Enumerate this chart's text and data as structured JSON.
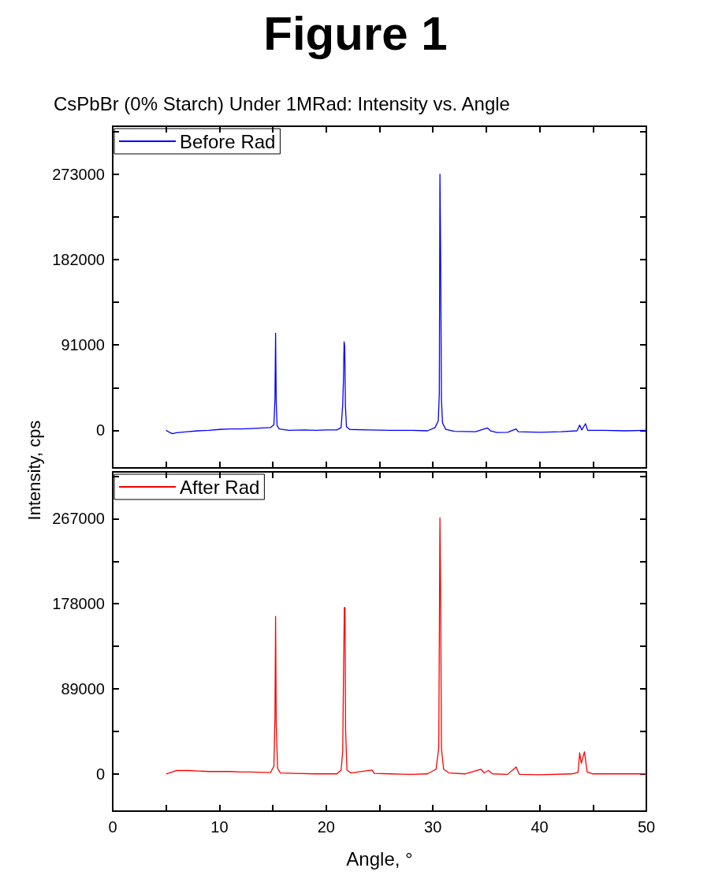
{
  "chart_data": [
    {
      "type": "line",
      "title": "CsPbBr (0% Starch) Under 1MRad: Intensity vs. Angle",
      "annotations": [
        "Figure 1"
      ],
      "ylabel": "Intensity, cps",
      "series": [
        {
          "name": "Before Rad",
          "color": "#0000ff",
          "x": [
            5.0,
            5.3,
            5.6,
            6,
            7,
            8,
            9,
            10,
            11,
            12,
            13,
            14,
            14.8,
            15.1,
            15.2,
            15.26,
            15.32,
            15.4,
            15.6,
            16.5,
            18,
            19,
            20,
            21,
            21.4,
            21.55,
            21.62,
            21.68,
            21.74,
            21.8,
            21.9,
            22.2,
            24,
            26,
            28,
            29.5,
            30.2,
            30.5,
            30.6,
            30.66,
            30.72,
            30.8,
            30.9,
            31.2,
            32,
            34,
            35.1,
            35.4,
            36,
            37,
            37.8,
            38,
            40,
            42,
            43.5,
            43.75,
            43.95,
            44.3,
            44.5,
            46,
            48,
            50
          ],
          "values": [
            0,
            -2000,
            -3500,
            -2500,
            -1500,
            -500,
            0,
            1000,
            1500,
            1500,
            2000,
            2500,
            3000,
            6000,
            32700,
            103400,
            30000,
            5000,
            1500,
            0,
            500,
            0,
            500,
            500,
            3000,
            27100,
            54500,
            94400,
            89100,
            27000,
            4000,
            1000,
            500,
            0,
            0,
            -500,
            3000,
            10000,
            38400,
            273000,
            194400,
            33000,
            8000,
            1000,
            -1000,
            -1500,
            2600,
            -500,
            -2300,
            -2000,
            1500,
            -1500,
            -2000,
            -1500,
            -500,
            5600,
            500,
            7100,
            0,
            0,
            -500,
            0
          ]
        }
      ],
      "xlim": [
        0,
        50
      ],
      "xticks": [
        0,
        {
          "value": 5,
          "label": null
        },
        10,
        {
          "value": 15,
          "label": null
        },
        20,
        {
          "value": 25,
          "label": null
        },
        30,
        {
          "value": 35,
          "label": null
        },
        40,
        {
          "value": 45,
          "label": null
        },
        50
      ],
      "ylim": [
        -40000,
        324000
      ],
      "yticks": [
        0,
        {
          "value": 45500,
          "label": null
        },
        91000,
        {
          "value": 136500,
          "label": null
        },
        182000,
        {
          "value": 227500,
          "label": null
        },
        273000,
        {
          "value": 318500,
          "label": null
        }
      ],
      "tick_labels": "y",
      "grid": false,
      "legend": "top left",
      "marker": "none",
      "line_style": "solid"
    },
    {
      "type": "line",
      "xlabel": "Angle, °",
      "series": [
        {
          "name": "After Rad",
          "color": "#ff0000",
          "x": [
            5,
            5.3,
            6,
            7,
            8,
            9,
            10,
            11,
            12,
            13,
            14,
            14.8,
            15.1,
            15.2,
            15.26,
            15.32,
            15.45,
            15.7,
            17,
            19,
            21,
            21.4,
            21.55,
            21.62,
            21.7,
            21.76,
            21.82,
            21.95,
            22.3,
            24.3,
            24.5,
            26,
            28,
            29.5,
            30.3,
            30.55,
            30.66,
            30.72,
            30.8,
            31,
            31.5,
            33,
            34.5,
            34.8,
            35.2,
            35.6,
            37,
            37.8,
            38.1,
            40,
            43,
            43.6,
            43.75,
            43.9,
            44.2,
            44.45,
            45,
            48,
            50
          ],
          "values": [
            0,
            1000,
            3700,
            3500,
            3000,
            2500,
            2500,
            2500,
            2000,
            2000,
            1500,
            1500,
            8000,
            57500,
            164800,
            51300,
            6000,
            1000,
            500,
            0,
            0,
            4000,
            23800,
            100000,
            174000,
            174000,
            45000,
            4000,
            1000,
            4000,
            500,
            0,
            -500,
            0,
            5000,
            27500,
            268000,
            195200,
            27000,
            5000,
            1000,
            0,
            4800,
            1000,
            3500,
            0,
            -500,
            7300,
            -500,
            -1000,
            0,
            1500,
            22000,
            11000,
            23100,
            2000,
            0,
            0,
            0
          ]
        }
      ],
      "xlim": [
        0,
        50
      ],
      "xticks": [
        0,
        {
          "value": 5,
          "label": null
        },
        10,
        {
          "value": 15,
          "label": null
        },
        20,
        {
          "value": 25,
          "label": null
        },
        30,
        {
          "value": 35,
          "label": null
        },
        40,
        {
          "value": 45,
          "label": null
        },
        50
      ],
      "ylim": [
        -39000,
        316000
      ],
      "yticks": [
        0,
        {
          "value": 44500,
          "label": null
        },
        89000,
        {
          "value": 133500,
          "label": null
        },
        178000,
        {
          "value": 222500,
          "label": null
        },
        267000,
        {
          "value": 311500,
          "label": null
        }
      ],
      "grid": false,
      "legend": "top left",
      "marker": "none",
      "line_style": "solid"
    }
  ]
}
